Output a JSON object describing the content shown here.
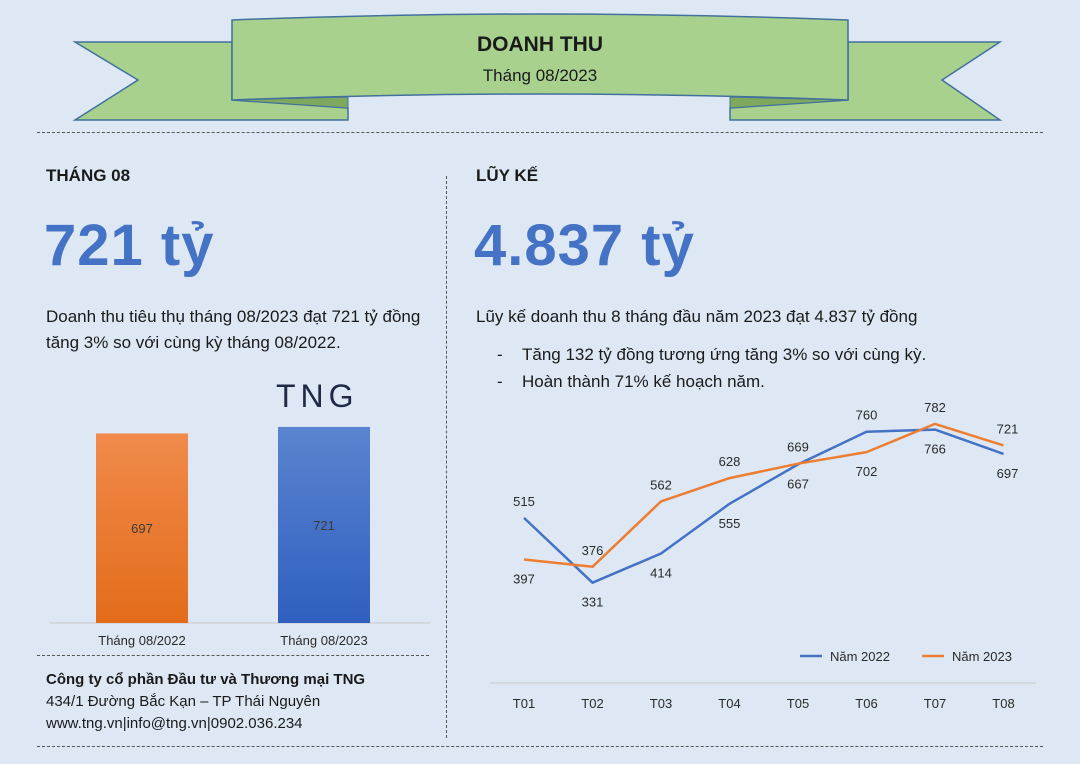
{
  "header": {
    "title": "DOANH THU",
    "subtitle": "Tháng 08/2023"
  },
  "monthly": {
    "heading": "THÁNG 08",
    "big_value": "721 tỷ",
    "description": "Doanh thu tiêu thụ tháng 08/2023 đạt 721 tỷ đồng tăng 3% so với cùng kỳ tháng 08/2022."
  },
  "cumulative": {
    "heading": "LŨY KẾ",
    "big_value": "4.837 tỷ",
    "description": "Lũy kế doanh thu 8 tháng đầu năm 2023 đạt 4.837 tỷ đồng",
    "bullets": [
      "Tăng 132 tỷ đồng tương ứng tăng 3% so với cùng kỳ.",
      "Hoàn thành 71% kế hoạch năm."
    ]
  },
  "logo_text": "TNG",
  "footer": {
    "company": "Công ty cổ phần Đầu tư và Thương mại TNG",
    "address": "434/1 Đường Bắc Kạn – TP Thái Nguyên",
    "contact": "www.tng.vn|info@tng.vn|0902.036.234"
  },
  "colors": {
    "background": "#dde8f4",
    "ribbon_fill": "#a9d18e",
    "ribbon_stroke": "#41719c",
    "accent_blue": "#4472c4",
    "accent_orange": "#ed7d31"
  },
  "chart_data": [
    {
      "type": "bar",
      "categories": [
        "Tháng 08/2022",
        "Tháng 08/2023"
      ],
      "values": [
        697,
        721
      ],
      "bar_colors": [
        "#ed7d31",
        "#4472c4"
      ],
      "ylim": [
        0,
        820
      ]
    },
    {
      "type": "line",
      "categories": [
        "T01",
        "T02",
        "T03",
        "T04",
        "T05",
        "T06",
        "T07",
        "T08"
      ],
      "series": [
        {
          "name": "Năm 2022",
          "color": "#4472c4",
          "values": [
            515,
            331,
            414,
            555,
            667,
            760,
            766,
            697
          ]
        },
        {
          "name": "Năm 2023",
          "color": "#ed7d31",
          "values": [
            397,
            376,
            562,
            628,
            669,
            702,
            782,
            721
          ]
        }
      ],
      "ylim": [
        100,
        850
      ],
      "legend": "bottom-right",
      "grid": false
    }
  ]
}
